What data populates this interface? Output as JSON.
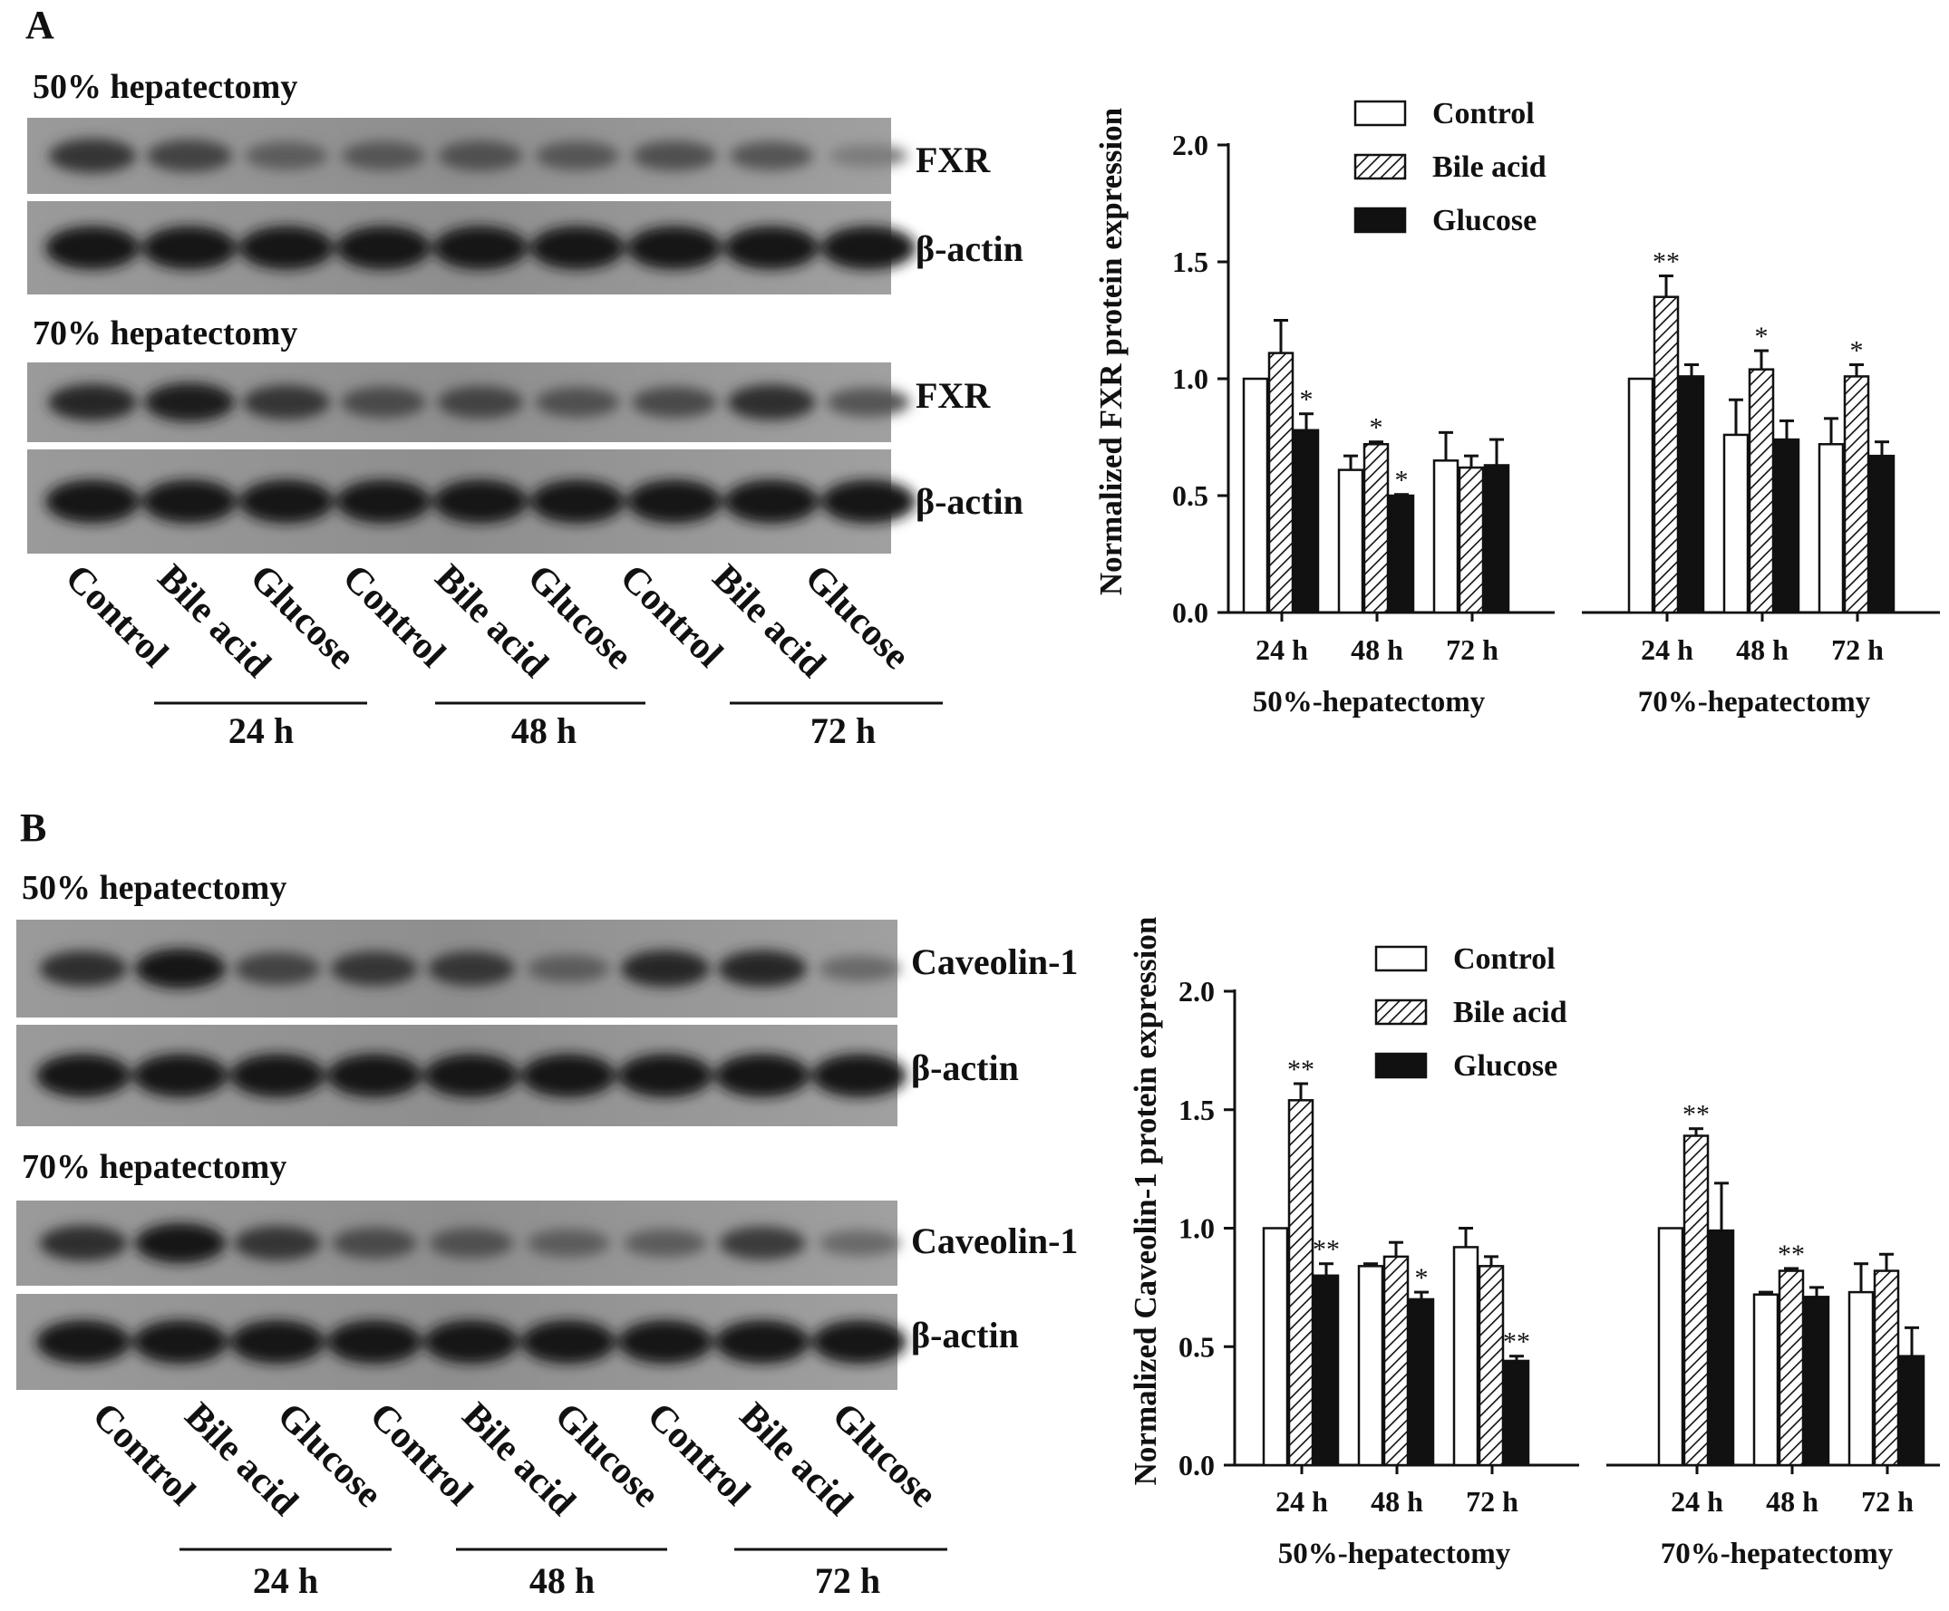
{
  "panels": [
    {
      "letter": "A",
      "blot": {
        "sections": [
          {
            "title": "50% hepatectomy",
            "protein_label": "FXR",
            "loading_label": "β-actin",
            "protein_intensity": [
              0.75,
              0.65,
              0.45,
              0.5,
              0.55,
              0.5,
              0.55,
              0.5,
              0.2
            ],
            "loading_intensity": [
              1,
              1,
              1,
              1,
              1,
              1,
              1,
              1,
              1
            ]
          },
          {
            "title": "70% hepatectomy",
            "protein_label": "FXR",
            "loading_label": "β-actin",
            "protein_intensity": [
              0.85,
              0.95,
              0.75,
              0.6,
              0.65,
              0.55,
              0.6,
              0.8,
              0.5
            ],
            "loading_intensity": [
              1,
              1,
              1,
              1,
              1,
              1,
              1,
              1,
              1
            ]
          }
        ],
        "lane_labels": [
          "Control",
          "Bile acid",
          "Glucose",
          "Control",
          "Bile acid",
          "Glucose",
          "Control",
          "Bile acid",
          "Glucose"
        ],
        "time_labels": [
          "24 h",
          "48 h",
          "72 h"
        ]
      }
    },
    {
      "letter": "B",
      "blot": {
        "sections": [
          {
            "title": "50% hepatectomy",
            "protein_label": "Caveolin-1",
            "loading_label": "β-actin",
            "protein_intensity": [
              0.8,
              1.0,
              0.65,
              0.75,
              0.75,
              0.45,
              0.85,
              0.85,
              0.35
            ],
            "loading_intensity": [
              1,
              1,
              1,
              1,
              1,
              1,
              1,
              1,
              1
            ]
          },
          {
            "title": "70% hepatectomy",
            "protein_label": "Caveolin-1",
            "loading_label": "β-actin",
            "protein_intensity": [
              0.8,
              1.0,
              0.75,
              0.6,
              0.55,
              0.45,
              0.45,
              0.7,
              0.35
            ],
            "loading_intensity": [
              1,
              1,
              1,
              1,
              1,
              1,
              1,
              1,
              1
            ]
          }
        ],
        "lane_labels": [
          "Control",
          "Bile acid",
          "Glucose",
          "Control",
          "Bile acid",
          "Glucose",
          "Control",
          "Bile acid",
          "Glucose"
        ],
        "time_labels": [
          "24 h",
          "48 h",
          "72 h"
        ]
      }
    }
  ],
  "chart_data": [
    {
      "type": "bar",
      "ylabel": "Normalized FXR protein expression",
      "ylim": [
        0,
        2.0
      ],
      "yticks": [
        "0.0",
        "0.5",
        "1.0",
        "1.5",
        "2.0"
      ],
      "groups": [
        "50%-hepatectomy",
        "70%-hepatectomy"
      ],
      "categories": [
        "24 h",
        "48 h",
        "72 h"
      ],
      "legend": {
        "placement": "top-left",
        "entries": [
          "Control",
          "Bile acid",
          "Glucose"
        ]
      },
      "series": [
        {
          "name": "Control",
          "fill": "white",
          "values": [
            [
              1.0,
              0.61,
              0.65
            ],
            [
              1.0,
              0.76,
              0.72
            ]
          ],
          "errors": [
            [
              0,
              0.06,
              0.12
            ],
            [
              0,
              0.15,
              0.11
            ]
          ],
          "marks": [
            [
              "",
              "",
              ""
            ],
            [
              "",
              "",
              ""
            ]
          ]
        },
        {
          "name": "Bile acid",
          "fill": "hatched",
          "values": [
            [
              1.11,
              0.72,
              0.62
            ],
            [
              1.35,
              1.04,
              1.01
            ]
          ],
          "errors": [
            [
              0.14,
              0.01,
              0.05
            ],
            [
              0.09,
              0.08,
              0.05
            ]
          ],
          "marks": [
            [
              "",
              "*",
              ""
            ],
            [
              "**",
              "*",
              "*"
            ]
          ]
        },
        {
          "name": "Glucose",
          "fill": "black",
          "values": [
            [
              0.78,
              0.5,
              0.63
            ],
            [
              1.01,
              0.74,
              0.67
            ]
          ],
          "errors": [
            [
              0.07,
              0.005,
              0.11
            ],
            [
              0.05,
              0.08,
              0.06
            ]
          ],
          "marks": [
            [
              "*",
              "*",
              ""
            ],
            [
              "",
              "",
              ""
            ]
          ]
        }
      ]
    },
    {
      "type": "bar",
      "ylabel": "Normalized Caveolin-1 protein expression",
      "ylim": [
        0,
        2.0
      ],
      "yticks": [
        "0.0",
        "0.5",
        "1.0",
        "1.5",
        "2.0"
      ],
      "groups": [
        "50%-hepatectomy",
        "70%-hepatectomy"
      ],
      "categories": [
        "24 h",
        "48 h",
        "72 h"
      ],
      "legend": {
        "placement": "top-left",
        "entries": [
          "Control",
          "Bile acid",
          "Glucose"
        ]
      },
      "series": [
        {
          "name": "Control",
          "fill": "white",
          "values": [
            [
              1.0,
              0.84,
              0.92
            ],
            [
              1.0,
              0.72,
              0.73
            ]
          ],
          "errors": [
            [
              0,
              0.01,
              0.08
            ],
            [
              0,
              0.01,
              0.12
            ]
          ],
          "marks": [
            [
              "",
              "",
              ""
            ],
            [
              "",
              "",
              ""
            ]
          ]
        },
        {
          "name": "Bile acid",
          "fill": "hatched",
          "values": [
            [
              1.54,
              0.88,
              0.84
            ],
            [
              1.39,
              0.82,
              0.82
            ]
          ],
          "errors": [
            [
              0.07,
              0.06,
              0.04
            ],
            [
              0.03,
              0.01,
              0.07
            ]
          ],
          "marks": [
            [
              "**",
              "",
              ""
            ],
            [
              "**",
              "**",
              ""
            ]
          ]
        },
        {
          "name": "Glucose",
          "fill": "black",
          "values": [
            [
              0.8,
              0.7,
              0.44
            ],
            [
              0.99,
              0.71,
              0.46
            ]
          ],
          "errors": [
            [
              0.05,
              0.03,
              0.02
            ],
            [
              0.2,
              0.04,
              0.12
            ]
          ],
          "marks": [
            [
              "**",
              "*",
              "**"
            ],
            [
              "",
              "",
              ""
            ]
          ]
        }
      ]
    }
  ]
}
